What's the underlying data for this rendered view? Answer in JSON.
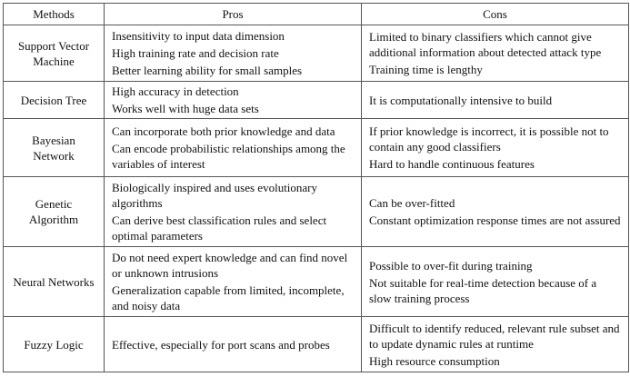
{
  "headers": [
    "Methods",
    "Pros",
    "Cons"
  ],
  "rows": [
    {
      "method": "Support Vector Machine",
      "pros": [
        "Insensitivity to input data dimension",
        "High training rate and decision rate",
        "Better learning ability for small samples"
      ],
      "cons": [
        "Limited to binary classifiers which cannot give additional information about detected attack type",
        "Training time is lengthy"
      ]
    },
    {
      "method": "Decision Tree",
      "pros": [
        "High accuracy in detection",
        "Works well with huge data sets"
      ],
      "cons": [
        "It is computationally intensive to build"
      ]
    },
    {
      "method": "Bayesian Network",
      "pros": [
        "Can incorporate both prior knowledge and data",
        "Can encode probabilistic relationships among the variables of interest"
      ],
      "cons": [
        "If prior knowledge is incorrect, it is possible not to contain any good classifiers",
        "Hard to handle continuous features"
      ]
    },
    {
      "method": "Genetic Algorithm",
      "pros": [
        "Biologically inspired and uses evolutionary algorithms",
        "Can derive best classification rules and select optimal parameters"
      ],
      "cons": [
        "Can be over-fitted",
        "Constant optimization response times are not assured"
      ]
    },
    {
      "method": "Neural Networks",
      "pros": [
        "Do not need expert knowledge and can find novel or unknown intrusions",
        "Generalization capable from limited, incomplete, and noisy data"
      ],
      "cons": [
        "Possible to over-fit during training",
        "Not suitable for real-time detection because of a slow training process"
      ]
    },
    {
      "method": "Fuzzy Logic",
      "pros": [
        "Effective, especially for port scans and probes"
      ],
      "cons": [
        "Difficult to identify reduced, relevant rule subset and to update dynamic rules at runtime",
        "High resource consumption"
      ]
    }
  ]
}
